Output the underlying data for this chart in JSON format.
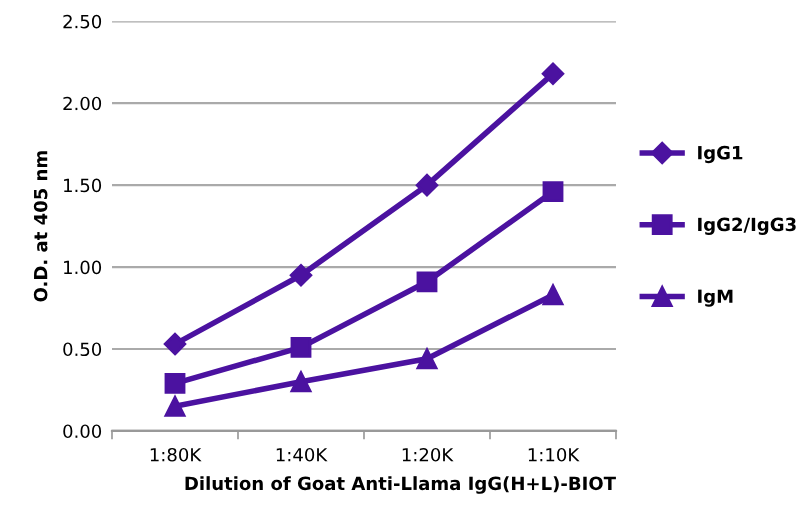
{
  "chart_data": {
    "type": "line",
    "xlabel": "Dilution of Goat Anti-Llama IgG(H+L)-BIOT",
    "ylabel": "O.D. at 405 nm",
    "categories": [
      "1:80K",
      "1:40K",
      "1:20K",
      "1:10K"
    ],
    "series": [
      {
        "name": "IgG1",
        "color": "#4b12a0",
        "marker": "diamond",
        "values": [
          0.53,
          0.95,
          1.5,
          2.18
        ]
      },
      {
        "name": "IgG2/IgG3",
        "color": "#4b12a0",
        "marker": "square",
        "values": [
          0.29,
          0.51,
          0.91,
          1.46
        ]
      },
      {
        "name": "IgM",
        "color": "#4b12a0",
        "marker": "triangle",
        "values": [
          0.15,
          0.3,
          0.44,
          0.83
        ]
      }
    ],
    "ylim": [
      0,
      2.5
    ],
    "yticks": [
      {
        "value": 0,
        "label": "0.00"
      },
      {
        "value": 0.5,
        "label": "0.50"
      },
      {
        "value": 1,
        "label": "1.00"
      },
      {
        "value": 1.5,
        "label": "1.50"
      },
      {
        "value": 2,
        "label": "2.00"
      },
      {
        "value": 2.5,
        "label": "2.50"
      }
    ],
    "grid": "y",
    "legend": "right"
  }
}
